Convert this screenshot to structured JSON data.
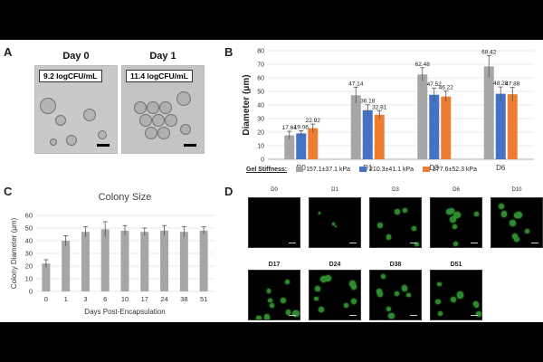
{
  "panels": {
    "a": {
      "label": "A",
      "day0": {
        "title": "Day 0",
        "cfu": "9.2 logCFU/mL"
      },
      "day1": {
        "title": "Day 1",
        "cfu": "11.4 logCFU/mL"
      }
    },
    "b": {
      "label": "B"
    },
    "c": {
      "label": "C"
    },
    "d": {
      "label": "D",
      "images": [
        "D0",
        "D1",
        "D3",
        "D6",
        "D10",
        "D17",
        "D24",
        "D38",
        "D51"
      ]
    }
  },
  "colors": {
    "gray": "#a6a6a6",
    "blue": "#4472c4",
    "orange": "#ed7d31",
    "fluor": "#2f8a2f"
  },
  "chart_data": [
    {
      "type": "bar",
      "panel": "B",
      "categories": [
        "D0",
        "D1",
        "D3",
        "D6"
      ],
      "ylabel": "Diameter (μm)",
      "ylim": [
        0,
        80
      ],
      "yticks": [
        0,
        10,
        20,
        30,
        40,
        50,
        60,
        70,
        80
      ],
      "legend_title": "Gel Stiffness:",
      "legend_position": "bottom",
      "series": [
        {
          "name": "157.1±37.1 kPa",
          "color": "#a6a6a6",
          "values": [
            17.64,
            47.14,
            62.48,
            68.42
          ],
          "labels": [
            "17.64",
            "47.14",
            "62.48",
            "68.42"
          ],
          "errors": [
            3,
            6,
            5,
            8
          ]
        },
        {
          "name": "210.3±41.1 kPa",
          "color": "#4472c4",
          "values": [
            19.06,
            36.18,
            47.52,
            48.28
          ],
          "labels": [
            "19.06",
            "36.18",
            "47.52",
            "48.28"
          ],
          "errors": [
            2,
            4,
            5,
            5
          ]
        },
        {
          "name": "277.6±52.3 kPa",
          "color": "#ed7d31",
          "values": [
            22.92,
            32.81,
            46.22,
            47.88
          ],
          "labels": [
            "22.92",
            "32.81",
            "46.22",
            "47.88"
          ],
          "errors": [
            3,
            3,
            4,
            5
          ]
        }
      ],
      "grid": true
    },
    {
      "type": "bar",
      "panel": "C",
      "title": "Colony Size",
      "categories": [
        "0",
        "1",
        "3",
        "6",
        "10",
        "17",
        "24",
        "38",
        "51"
      ],
      "values": [
        22,
        40,
        47,
        49,
        48,
        47,
        48,
        47,
        48
      ],
      "errors": [
        3,
        4,
        4,
        6,
        4,
        3,
        4,
        4,
        3
      ],
      "xlabel": "Days Post-Encapsulation",
      "ylabel": "Colony Diameter (μm)",
      "ylim": [
        0,
        60
      ],
      "yticks": [
        0,
        10,
        20,
        30,
        40,
        50,
        60
      ],
      "color": "#a6a6a6",
      "grid": true
    }
  ]
}
